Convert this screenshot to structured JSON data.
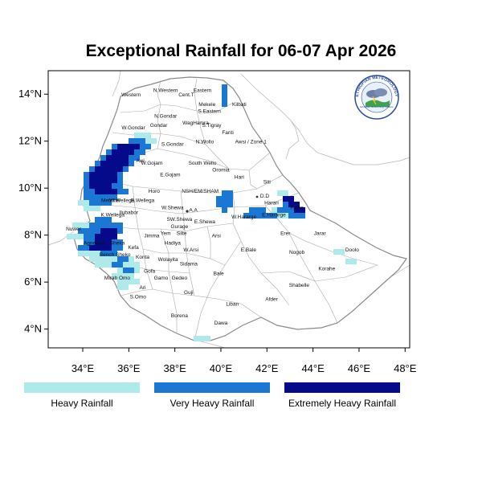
{
  "title": "Exceptional Rainfall for 06-07 Apr 2026",
  "colors": {
    "heavy": "#aeeaea",
    "very_heavy": "#1a78d4",
    "extremely_heavy": "#050a8a"
  },
  "map": {
    "lon_range": [
      32.5,
      48.2
    ],
    "lat_range": [
      3.2,
      15.0
    ],
    "x_ticks": [
      "34°E",
      "36°E",
      "38°E",
      "40°E",
      "42°E",
      "44°E",
      "46°E",
      "48°E"
    ],
    "y_ticks": [
      "14°N",
      "12°N",
      "10°N",
      "8°N",
      "6°N",
      "4°N"
    ],
    "region_labels": [
      {
        "name": "Western",
        "lon": 36.1,
        "lat": 13.9
      },
      {
        "name": "N.Western",
        "lon": 37.6,
        "lat": 14.1
      },
      {
        "name": "Cent.T",
        "lon": 38.5,
        "lat": 13.9
      },
      {
        "name": "Eastern",
        "lon": 39.2,
        "lat": 14.1
      },
      {
        "name": "Mekele",
        "lon": 39.4,
        "lat": 13.5
      },
      {
        "name": "S.Eastern",
        "lon": 39.5,
        "lat": 13.2
      },
      {
        "name": "Kilbati",
        "lon": 40.8,
        "lat": 13.5
      },
      {
        "name": "N.Gondar",
        "lon": 37.6,
        "lat": 13.0
      },
      {
        "name": "WagHamra",
        "lon": 38.9,
        "lat": 12.7
      },
      {
        "name": "S.Tigray",
        "lon": 39.6,
        "lat": 12.6
      },
      {
        "name": "W.Gondar",
        "lon": 36.2,
        "lat": 12.5
      },
      {
        "name": "Gondar",
        "lon": 37.3,
        "lat": 12.6
      },
      {
        "name": "Fanti",
        "lon": 40.3,
        "lat": 12.3
      },
      {
        "name": "Awsi / Zone 1",
        "lon": 41.3,
        "lat": 11.9
      },
      {
        "name": "N.Wollo",
        "lon": 39.3,
        "lat": 11.9
      },
      {
        "name": "S.Gondar",
        "lon": 37.9,
        "lat": 11.8
      },
      {
        "name": "Awi",
        "lon": 36.5,
        "lat": 11.1
      },
      {
        "name": "W.Gojam",
        "lon": 37.0,
        "lat": 11.0
      },
      {
        "name": "South Wello",
        "lon": 39.2,
        "lat": 11.0
      },
      {
        "name": "Oromia",
        "lon": 40.0,
        "lat": 10.7
      },
      {
        "name": "E.Gojam",
        "lon": 37.8,
        "lat": 10.5
      },
      {
        "name": "Hari",
        "lon": 40.8,
        "lat": 10.4
      },
      {
        "name": "Siti",
        "lon": 42.0,
        "lat": 10.2
      },
      {
        "name": "Horo",
        "lon": 37.1,
        "lat": 9.8
      },
      {
        "name": "NSH/EM/SHAM",
        "lon": 39.1,
        "lat": 9.8
      },
      {
        "name": "D.D",
        "lon": 41.9,
        "lat": 9.6
      },
      {
        "name": "Harari",
        "lon": 42.2,
        "lat": 9.3
      },
      {
        "name": "Metekel",
        "lon": 35.2,
        "lat": 9.4
      },
      {
        "name": "W.Wellega",
        "lon": 35.7,
        "lat": 9.4
      },
      {
        "name": "E.Wellega",
        "lon": 36.6,
        "lat": 9.4
      },
      {
        "name": "W.Shewa",
        "lon": 37.9,
        "lat": 9.1
      },
      {
        "name": "A.A",
        "lon": 38.8,
        "lat": 9.0
      },
      {
        "name": "Fafan",
        "lon": 43.3,
        "lat": 9.1
      },
      {
        "name": "K.Wellega",
        "lon": 35.3,
        "lat": 8.8
      },
      {
        "name": "Ilubabor",
        "lon": 36.0,
        "lat": 8.9
      },
      {
        "name": "SW.Shewa",
        "lon": 38.2,
        "lat": 8.6
      },
      {
        "name": "E.Shewa",
        "lon": 39.3,
        "lat": 8.5
      },
      {
        "name": "W.Hararge",
        "lon": 41.0,
        "lat": 8.7
      },
      {
        "name": "E.Hararge",
        "lon": 42.3,
        "lat": 8.8
      },
      {
        "name": "Nuwer",
        "lon": 33.6,
        "lat": 8.2
      },
      {
        "name": "Gurage",
        "lon": 38.2,
        "lat": 8.3
      },
      {
        "name": "Jimma",
        "lon": 37.0,
        "lat": 7.9
      },
      {
        "name": "Yem",
        "lon": 37.6,
        "lat": 8.0
      },
      {
        "name": "Silte",
        "lon": 38.3,
        "lat": 8.0
      },
      {
        "name": "Jarar",
        "lon": 44.3,
        "lat": 8.0
      },
      {
        "name": "Erer",
        "lon": 42.8,
        "lat": 8.0
      },
      {
        "name": "Arsi",
        "lon": 39.8,
        "lat": 7.9
      },
      {
        "name": "Agnewak",
        "lon": 34.5,
        "lat": 7.6
      },
      {
        "name": "Sheka",
        "lon": 35.5,
        "lat": 7.6
      },
      {
        "name": "Hadiya",
        "lon": 37.9,
        "lat": 7.6
      },
      {
        "name": "Kefa",
        "lon": 36.2,
        "lat": 7.4
      },
      {
        "name": "W.Arsi",
        "lon": 38.7,
        "lat": 7.3
      },
      {
        "name": "E.Bale",
        "lon": 41.2,
        "lat": 7.3
      },
      {
        "name": "Nogob",
        "lon": 43.3,
        "lat": 7.2
      },
      {
        "name": "Doolo",
        "lon": 45.7,
        "lat": 7.3
      },
      {
        "name": "Bench Sheko",
        "lon": 35.4,
        "lat": 7.1
      },
      {
        "name": "Konta",
        "lon": 36.6,
        "lat": 7.0
      },
      {
        "name": "Wolayita",
        "lon": 37.7,
        "lat": 6.9
      },
      {
        "name": "Sidama",
        "lon": 38.6,
        "lat": 6.7
      },
      {
        "name": "Korahe",
        "lon": 44.6,
        "lat": 6.5
      },
      {
        "name": "Gofa",
        "lon": 36.9,
        "lat": 6.4
      },
      {
        "name": "Mirab Omo",
        "lon": 35.5,
        "lat": 6.1
      },
      {
        "name": "Gamo",
        "lon": 37.4,
        "lat": 6.1
      },
      {
        "name": "Gedeo",
        "lon": 38.2,
        "lat": 6.1
      },
      {
        "name": "Bale",
        "lon": 39.9,
        "lat": 6.3
      },
      {
        "name": "Shabelle",
        "lon": 43.4,
        "lat": 5.8
      },
      {
        "name": "Ari",
        "lon": 36.6,
        "lat": 5.7
      },
      {
        "name": "Guji",
        "lon": 38.6,
        "lat": 5.5
      },
      {
        "name": "S.Omo",
        "lon": 36.4,
        "lat": 5.3
      },
      {
        "name": "Afder",
        "lon": 42.2,
        "lat": 5.2
      },
      {
        "name": "Liban",
        "lon": 40.5,
        "lat": 5.0
      },
      {
        "name": "Borena",
        "lon": 38.2,
        "lat": 4.5
      },
      {
        "name": "Dawa",
        "lon": 40.0,
        "lat": 4.2
      }
    ]
  },
  "logo": {
    "arc_text": "ETHIOPIAN METEOROLOGY",
    "caption": "Ethiopian Meteorology Institute"
  },
  "legend": [
    {
      "label": "Heavy Rainfall",
      "color": "#aeeaea"
    },
    {
      "label": "Very Heavy Rainfall",
      "color": "#1a78d4"
    },
    {
      "label": "Extremely Heavy Rainfall",
      "color": "#050a8a"
    }
  ]
}
